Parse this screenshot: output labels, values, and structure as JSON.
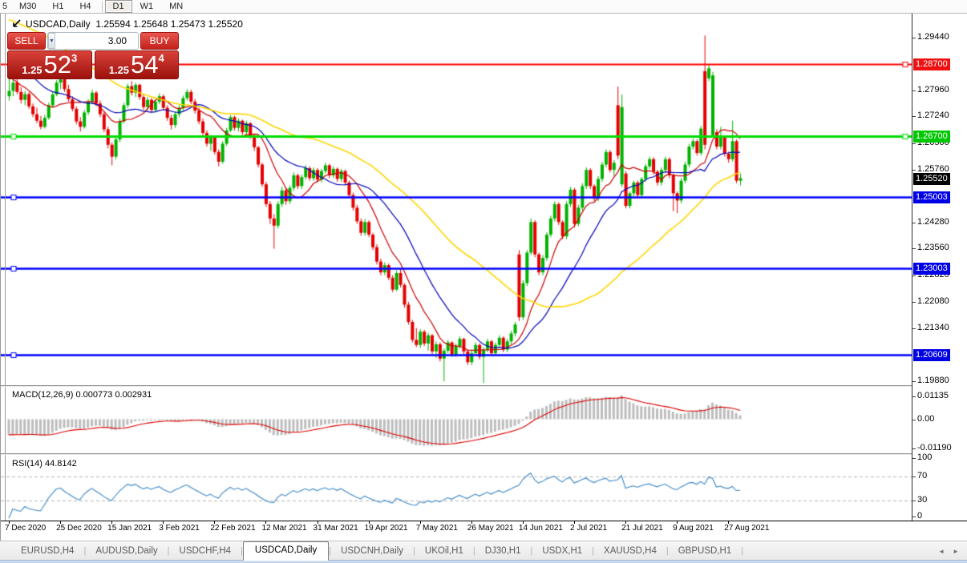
{
  "accent_colors": {
    "candle_up": "#00b300",
    "candle_down": "#e60000",
    "ma_fast": "#cc0000",
    "ma_mid": "#0000bb",
    "ma_slow": "#ffd700",
    "macd_hist": "#bdbdbd",
    "macd_signal": "#dd0000",
    "rsi_line": "#3a87c8",
    "level_dash": "#b5b5b5"
  },
  "toolbar": {
    "buttons": [
      "5",
      "M30",
      "H1",
      "H4",
      "D1",
      "W1",
      "MN"
    ],
    "active": "D1"
  },
  "chart": {
    "title_symbol": "USDCAD,Daily",
    "title_ohlc": "1.25594 1.25648 1.25473 1.25520"
  },
  "trade_panel": {
    "sell_label": "SELL",
    "buy_label": "BUY",
    "volume": "3.00",
    "spin_down": "▼",
    "spin_up": "▲",
    "sell_price_prefix": "1.25",
    "sell_price_big": "52",
    "sell_price_sup": "3",
    "buy_price_prefix": "1.25",
    "buy_price_big": "54",
    "buy_price_sup": "4"
  },
  "chart_data": {
    "type": "candlestick",
    "symbol": "USDCAD",
    "timeframe": "Daily",
    "ohlc_display": {
      "open": "1.25594",
      "high": "1.25648",
      "low": "1.25473",
      "close": "1.25520"
    },
    "y_axis": {
      "ticks": [
        "1.29440",
        "1.27960",
        "1.27240",
        "1.26500",
        "1.25760",
        "1.24280",
        "1.23560",
        "1.22820",
        "1.22080",
        "1.21340",
        "1.19880"
      ],
      "badges": [
        {
          "text": "1.28700",
          "price": 1.287,
          "bg": "#ee1111"
        },
        {
          "text": "1.26700",
          "price": 1.267,
          "bg": "#00c800"
        },
        {
          "text": "1.25520",
          "price": 1.2552,
          "bg": "#000000"
        },
        {
          "text": "1.25003",
          "price": 1.25003,
          "bg": "#0000e6"
        },
        {
          "text": "1.23003",
          "price": 1.23003,
          "bg": "#0000e6"
        },
        {
          "text": "1.20609",
          "price": 1.20609,
          "bg": "#0000e6"
        }
      ]
    },
    "h_lines": [
      {
        "price": 1.287,
        "color": "#ff0000",
        "width": 2,
        "handle": "right"
      },
      {
        "price": 1.267,
        "color": "#00dd00",
        "width": 3,
        "handle": "both"
      },
      {
        "price": 1.25003,
        "color": "#0000ff",
        "width": 2.5,
        "handle": "left"
      },
      {
        "price": 1.23003,
        "color": "#0000ff",
        "width": 2.5,
        "handle": "left"
      },
      {
        "price": 1.20609,
        "color": "#0000ff",
        "width": 2.5,
        "handle": "left"
      }
    ],
    "moving_averages": [
      {
        "period": 10,
        "color": "#cc0000"
      },
      {
        "period": 21,
        "color": "#0000bb"
      },
      {
        "period": 50,
        "color": "#ffd700"
      }
    ],
    "indicators": [
      {
        "name": "MACD",
        "label": "MACD(12,26,9) 0.000773 0.002931",
        "params": [
          12,
          26,
          9
        ],
        "axis": [
          "0.01135",
          "0.00",
          "-0.01190"
        ],
        "range": [
          -0.0119,
          0.01135
        ]
      },
      {
        "name": "RSI",
        "label": "RSI(14) 44.8142",
        "params": [
          14
        ],
        "axis": [
          "100",
          "70",
          "30",
          "0"
        ],
        "levels": [
          70,
          30
        ],
        "range": [
          0,
          100
        ]
      }
    ],
    "x_labels": [
      "7 Dec 2020",
      "25 Dec 2020",
      "15 Jan 2021",
      "3 Feb 2021",
      "22 Feb 2021",
      "12 Mar 2021",
      "31 Mar 2021",
      "19 Apr 2021",
      "7 May 2021",
      "26 May 2021",
      "14 Jun 2021",
      "2 Jul 2021",
      "21 Jul 2021",
      "9 Aug 2021",
      "27 Aug 2021"
    ],
    "x_label_indices": [
      0,
      13,
      26,
      39,
      52,
      65,
      78,
      91,
      104,
      117,
      130,
      143,
      156,
      169,
      182
    ],
    "indicator_seed_closes": [
      1.32,
      1.319,
      1.3179,
      1.3169,
      1.3159,
      1.3148,
      1.3138,
      1.3128,
      1.3117,
      1.3107,
      1.3097,
      1.3086,
      1.3076,
      1.3066,
      1.3055,
      1.3045,
      1.3035,
      1.3024,
      1.3014,
      1.3004,
      1.2993,
      1.2983,
      1.2973,
      1.2962,
      1.2952,
      1.2942,
      1.2931,
      1.2921,
      1.2911,
      1.29,
      1.289,
      1.288,
      1.2869,
      1.2859,
      1.2849,
      1.2838,
      1.2828,
      1.2818,
      1.2807,
      1.2797
    ],
    "candles": [
      [
        1.278,
        1.2828,
        1.2768,
        1.2795
      ],
      [
        1.2795,
        1.2832,
        1.278,
        1.2818
      ],
      [
        1.2818,
        1.283,
        1.2786,
        1.2792
      ],
      [
        1.2792,
        1.2805,
        1.276,
        1.277
      ],
      [
        1.277,
        1.2795,
        1.2755,
        1.2786
      ],
      [
        1.2786,
        1.2792,
        1.2745,
        1.2752
      ],
      [
        1.2752,
        1.276,
        1.2722,
        1.273
      ],
      [
        1.273,
        1.2748,
        1.2705,
        1.2712
      ],
      [
        1.2712,
        1.2725,
        1.2688,
        1.2695
      ],
      [
        1.2695,
        1.2728,
        1.269,
        1.272
      ],
      [
        1.272,
        1.2762,
        1.2715,
        1.2755
      ],
      [
        1.2755,
        1.2792,
        1.2748,
        1.2785
      ],
      [
        1.2785,
        1.2825,
        1.278,
        1.2818
      ],
      [
        1.2818,
        1.2838,
        1.28,
        1.2828
      ],
      [
        1.2828,
        1.2832,
        1.2792,
        1.28
      ],
      [
        1.28,
        1.2812,
        1.2765,
        1.2772
      ],
      [
        1.2772,
        1.278,
        1.2738,
        1.2745
      ],
      [
        1.2745,
        1.2752,
        1.2702,
        1.271
      ],
      [
        1.271,
        1.2722,
        1.2682,
        1.2695
      ],
      [
        1.2695,
        1.2742,
        1.269,
        1.2735
      ],
      [
        1.2735,
        1.2772,
        1.2728,
        1.2765
      ],
      [
        1.2765,
        1.2798,
        1.2758,
        1.279
      ],
      [
        1.279,
        1.2795,
        1.2752,
        1.276
      ],
      [
        1.276,
        1.2768,
        1.2722,
        1.273
      ],
      [
        1.273,
        1.2738,
        1.268,
        1.2688
      ],
      [
        1.2688,
        1.2695,
        1.2635,
        1.2645
      ],
      [
        1.2645,
        1.2652,
        1.2588,
        1.2612
      ],
      [
        1.2612,
        1.2668,
        1.2605,
        1.266
      ],
      [
        1.266,
        1.2718,
        1.2652,
        1.271
      ],
      [
        1.271,
        1.2762,
        1.2705,
        1.2755
      ],
      [
        1.2755,
        1.2815,
        1.2748,
        1.2808
      ],
      [
        1.2808,
        1.2822,
        1.2782,
        1.279
      ],
      [
        1.279,
        1.2818,
        1.2778,
        1.2812
      ],
      [
        1.2812,
        1.2815,
        1.277,
        1.2778
      ],
      [
        1.2778,
        1.2785,
        1.2742,
        1.275
      ],
      [
        1.275,
        1.2778,
        1.274,
        1.277
      ],
      [
        1.277,
        1.2775,
        1.2735,
        1.2742
      ],
      [
        1.2742,
        1.2772,
        1.2735,
        1.2765
      ],
      [
        1.2765,
        1.2788,
        1.2758,
        1.278
      ],
      [
        1.278,
        1.2785,
        1.2742,
        1.2748
      ],
      [
        1.2748,
        1.2755,
        1.2712,
        1.272
      ],
      [
        1.272,
        1.2728,
        1.2688,
        1.27
      ],
      [
        1.27,
        1.2738,
        1.2692,
        1.273
      ],
      [
        1.273,
        1.2755,
        1.2722,
        1.2748
      ],
      [
        1.2748,
        1.2782,
        1.274,
        1.2775
      ],
      [
        1.2775,
        1.28,
        1.2768,
        1.2792
      ],
      [
        1.2792,
        1.2798,
        1.2758,
        1.2765
      ],
      [
        1.2765,
        1.2772,
        1.2732,
        1.274
      ],
      [
        1.274,
        1.2748,
        1.2702,
        1.271
      ],
      [
        1.271,
        1.2718,
        1.2668,
        1.2678
      ],
      [
        1.2678,
        1.2685,
        1.264,
        1.2648
      ],
      [
        1.2648,
        1.2672,
        1.2628,
        1.2665
      ],
      [
        1.2665,
        1.267,
        1.2618,
        1.2625
      ],
      [
        1.2625,
        1.2632,
        1.2585,
        1.2598
      ],
      [
        1.2598,
        1.2655,
        1.2592,
        1.2648
      ],
      [
        1.2648,
        1.2692,
        1.2642,
        1.2685
      ],
      [
        1.2685,
        1.2728,
        1.268,
        1.2722
      ],
      [
        1.2722,
        1.2726,
        1.2685,
        1.2692
      ],
      [
        1.2692,
        1.2718,
        1.2682,
        1.2712
      ],
      [
        1.2712,
        1.2715,
        1.2672,
        1.268
      ],
      [
        1.268,
        1.2712,
        1.2672,
        1.2705
      ],
      [
        1.2705,
        1.2708,
        1.2662,
        1.267
      ],
      [
        1.267,
        1.2675,
        1.2628,
        1.2638
      ],
      [
        1.2638,
        1.2642,
        1.2582,
        1.259
      ],
      [
        1.259,
        1.2595,
        1.2528,
        1.2535
      ],
      [
        1.2535,
        1.2542,
        1.2472,
        1.248
      ],
      [
        1.248,
        1.2488,
        1.2425,
        1.244
      ],
      [
        1.244,
        1.2452,
        1.2356,
        1.242
      ],
      [
        1.242,
        1.2488,
        1.2412,
        1.248
      ],
      [
        1.248,
        1.2528,
        1.2472,
        1.2518
      ],
      [
        1.2518,
        1.2525,
        1.2478,
        1.2488
      ],
      [
        1.2488,
        1.2532,
        1.248,
        1.2525
      ],
      [
        1.2525,
        1.2568,
        1.2518,
        1.256
      ],
      [
        1.256,
        1.2565,
        1.2522,
        1.253
      ],
      [
        1.253,
        1.2562,
        1.2522,
        1.2555
      ],
      [
        1.2555,
        1.2588,
        1.2548,
        1.258
      ],
      [
        1.258,
        1.2585,
        1.2545,
        1.2552
      ],
      [
        1.2552,
        1.2582,
        1.2545,
        1.2575
      ],
      [
        1.2575,
        1.258,
        1.254,
        1.2548
      ],
      [
        1.2548,
        1.2578,
        1.254,
        1.2572
      ],
      [
        1.2572,
        1.2595,
        1.2565,
        1.2588
      ],
      [
        1.2588,
        1.2592,
        1.2552,
        1.256
      ],
      [
        1.256,
        1.2585,
        1.2552,
        1.2578
      ],
      [
        1.2578,
        1.2582,
        1.2542,
        1.255
      ],
      [
        1.255,
        1.2578,
        1.2542,
        1.2572
      ],
      [
        1.2572,
        1.2576,
        1.2532,
        1.254
      ],
      [
        1.254,
        1.2545,
        1.2498,
        1.2505
      ],
      [
        1.2505,
        1.2512,
        1.2462,
        1.247
      ],
      [
        1.247,
        1.2478,
        1.2425,
        1.2432
      ],
      [
        1.2432,
        1.244,
        1.2392,
        1.24
      ],
      [
        1.24,
        1.2438,
        1.2392,
        1.243
      ],
      [
        1.243,
        1.2435,
        1.2388,
        1.2395
      ],
      [
        1.2395,
        1.24,
        1.2352,
        1.236
      ],
      [
        1.236,
        1.2368,
        1.2312,
        1.232
      ],
      [
        1.232,
        1.2328,
        1.2282,
        1.229
      ],
      [
        1.229,
        1.2318,
        1.2282,
        1.231
      ],
      [
        1.231,
        1.2315,
        1.2268,
        1.2275
      ],
      [
        1.2275,
        1.2282,
        1.2235,
        1.2242
      ],
      [
        1.2242,
        1.2295,
        1.2238,
        1.2288
      ],
      [
        1.2288,
        1.2302,
        1.2248,
        1.2255
      ],
      [
        1.2255,
        1.226,
        1.2192,
        1.22
      ],
      [
        1.22,
        1.2208,
        1.2145,
        1.2152
      ],
      [
        1.2152,
        1.2158,
        1.2095,
        1.2102
      ],
      [
        1.2102,
        1.2135,
        1.2082,
        1.2088
      ],
      [
        1.2088,
        1.2132,
        1.208,
        1.2125
      ],
      [
        1.2125,
        1.213,
        1.2085,
        1.2092
      ],
      [
        1.2092,
        1.2122,
        1.2072,
        1.2115
      ],
      [
        1.2115,
        1.2118,
        1.2062,
        1.207
      ],
      [
        1.207,
        1.2098,
        1.2052,
        1.209
      ],
      [
        1.209,
        1.2095,
        1.2042,
        1.205
      ],
      [
        1.205,
        1.2078,
        1.1987,
        1.2072
      ],
      [
        1.2072,
        1.2102,
        1.2065,
        1.2095
      ],
      [
        1.2095,
        1.2098,
        1.2055,
        1.2062
      ],
      [
        1.2062,
        1.2092,
        1.2055,
        1.2085
      ],
      [
        1.2085,
        1.2112,
        1.2078,
        1.2105
      ],
      [
        1.2105,
        1.2108,
        1.2062,
        1.207
      ],
      [
        1.207,
        1.2075,
        1.2032,
        1.204
      ],
      [
        1.204,
        1.2072,
        1.2032,
        1.2065
      ],
      [
        1.2065,
        1.2095,
        1.2058,
        1.2088
      ],
      [
        1.2088,
        1.2092,
        1.2048,
        1.2055
      ],
      [
        1.2055,
        1.2082,
        1.1982,
        1.2075
      ],
      [
        1.2075,
        1.2105,
        1.2068,
        1.2098
      ],
      [
        1.2098,
        1.2102,
        1.2058,
        1.2065
      ],
      [
        1.2065,
        1.2095,
        1.2058,
        1.2088
      ],
      [
        1.2088,
        1.2115,
        1.208,
        1.2108
      ],
      [
        1.2108,
        1.2112,
        1.2068,
        1.2075
      ],
      [
        1.2075,
        1.2105,
        1.2068,
        1.2098
      ],
      [
        1.2098,
        1.2128,
        1.209,
        1.212
      ],
      [
        1.212,
        1.2152,
        1.2112,
        1.2145
      ],
      [
        1.234,
        1.2352,
        1.2155,
        1.2165
      ],
      [
        1.2165,
        1.2268,
        1.2158,
        1.226
      ],
      [
        1.226,
        1.2352,
        1.2252,
        1.2345
      ],
      [
        1.2345,
        1.244,
        1.2338,
        1.243
      ],
      [
        1.243,
        1.2435,
        1.2332,
        1.234
      ],
      [
        1.234,
        1.2345,
        1.2282,
        1.229
      ],
      [
        1.229,
        1.2338,
        1.2282,
        1.233
      ],
      [
        1.233,
        1.2402,
        1.2322,
        1.2395
      ],
      [
        1.2395,
        1.2448,
        1.2388,
        1.244
      ],
      [
        1.244,
        1.2488,
        1.2432,
        1.248
      ],
      [
        1.248,
        1.2485,
        1.2422,
        1.243
      ],
      [
        1.243,
        1.2435,
        1.2382,
        1.239
      ],
      [
        1.239,
        1.2488,
        1.2382,
        1.248
      ],
      [
        1.248,
        1.2528,
        1.2472,
        1.252
      ],
      [
        1.252,
        1.2525,
        1.2415,
        1.2425
      ],
      [
        1.2425,
        1.2478,
        1.2418,
        1.247
      ],
      [
        1.247,
        1.2538,
        1.2462,
        1.253
      ],
      [
        1.253,
        1.2582,
        1.2522,
        1.2575
      ],
      [
        1.2575,
        1.258,
        1.2522,
        1.253
      ],
      [
        1.253,
        1.2535,
        1.2488,
        1.2495
      ],
      [
        1.2495,
        1.2558,
        1.2488,
        1.255
      ],
      [
        1.255,
        1.2598,
        1.2542,
        1.259
      ],
      [
        1.259,
        1.2632,
        1.2582,
        1.2625
      ],
      [
        1.2625,
        1.263,
        1.2568,
        1.2575
      ],
      [
        1.2575,
        1.2602,
        1.2558,
        1.2595
      ],
      [
        1.2755,
        1.2807,
        1.2605,
        1.2615
      ],
      [
        1.2535,
        1.2785,
        1.2528,
        1.275
      ],
      [
        1.2565,
        1.2572,
        1.2468,
        1.2475
      ],
      [
        1.2475,
        1.2515,
        1.2468,
        1.251
      ],
      [
        1.251,
        1.2545,
        1.2502,
        1.254
      ],
      [
        1.254,
        1.2545,
        1.2498,
        1.2505
      ],
      [
        1.2505,
        1.2555,
        1.2498,
        1.255
      ],
      [
        1.255,
        1.2592,
        1.2542,
        1.2585
      ],
      [
        1.2585,
        1.2612,
        1.2578,
        1.2605
      ],
      [
        1.2605,
        1.261,
        1.2562,
        1.257
      ],
      [
        1.257,
        1.2575,
        1.2532,
        1.254
      ],
      [
        1.254,
        1.2582,
        1.2532,
        1.2575
      ],
      [
        1.2575,
        1.2612,
        1.2568,
        1.2605
      ],
      [
        1.2605,
        1.261,
        1.2552,
        1.256
      ],
      [
        1.256,
        1.2565,
        1.246,
        1.251
      ],
      [
        1.251,
        1.2515,
        1.2455,
        1.249
      ],
      [
        1.249,
        1.2552,
        1.2482,
        1.2545
      ],
      [
        1.2545,
        1.2598,
        1.2538,
        1.259
      ],
      [
        1.259,
        1.2648,
        1.2582,
        1.264
      ],
      [
        1.264,
        1.2662,
        1.2632,
        1.2655
      ],
      [
        1.2655,
        1.266,
        1.2615,
        1.2622
      ],
      [
        1.2622,
        1.2698,
        1.2615,
        1.269
      ],
      [
        1.285,
        1.2949,
        1.2632,
        1.2645
      ],
      [
        1.283,
        1.2868,
        1.2822,
        1.2858
      ],
      [
        1.2672,
        1.2848,
        1.2665,
        1.2838
      ],
      [
        1.268,
        1.2688,
        1.2632,
        1.264
      ],
      [
        1.264,
        1.2695,
        1.2632,
        1.2665
      ],
      [
        1.2665,
        1.267,
        1.2612,
        1.262
      ],
      [
        1.262,
        1.2626,
        1.2595,
        1.2605
      ],
      [
        1.2605,
        1.2712,
        1.2598,
        1.2655
      ],
      [
        1.2655,
        1.266,
        1.2538,
        1.2545
      ],
      [
        1.2545,
        1.2565,
        1.2532,
        1.2552
      ]
    ]
  },
  "bottom_tabs": {
    "tabs": [
      "EURUSD,H4",
      "AUDUSD,Daily",
      "USDCHF,H4",
      "USDCAD,Daily",
      "USDCNH,Daily",
      "UKOil,H1",
      "DJ30,H1",
      "USDX,H1",
      "XAUUSD,H4",
      "GBPUSD,H1"
    ],
    "active": "USDCAD,Daily",
    "scroll_left": "◄",
    "scroll_right": "►"
  }
}
